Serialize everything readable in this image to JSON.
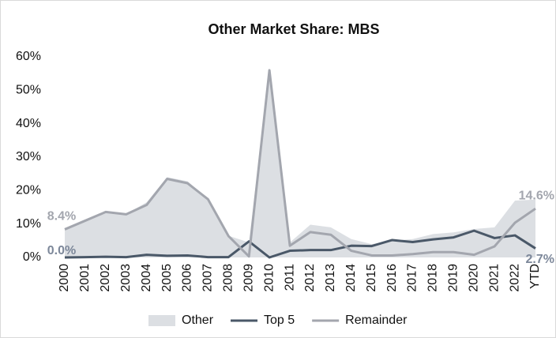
{
  "chart_data": {
    "type": "line",
    "title": "Other Market Share: MBS",
    "categories": [
      "2000",
      "2001",
      "2002",
      "2003",
      "2004",
      "2005",
      "2006",
      "2007",
      "2008",
      "2009",
      "2010",
      "2011",
      "2012",
      "2013",
      "2014",
      "2015",
      "2016",
      "2017",
      "2018",
      "2019",
      "2020",
      "2021",
      "2022",
      "YTD"
    ],
    "ylim": [
      0,
      60
    ],
    "yticks": [
      {
        "value": 0,
        "label": "0%"
      },
      {
        "value": 10,
        "label": "10%"
      },
      {
        "value": 20,
        "label": "20%"
      },
      {
        "value": 30,
        "label": "30%"
      },
      {
        "value": 40,
        "label": "40%"
      },
      {
        "value": 50,
        "label": "50%"
      },
      {
        "value": 60,
        "label": "60%"
      }
    ],
    "legend": "bottom",
    "series": [
      {
        "name": "Other",
        "kind": "area",
        "color": "#dcdfe3",
        "values": [
          8.4,
          11,
          13.8,
          13,
          16.5,
          24,
          22.8,
          17.5,
          6.5,
          4.5,
          56,
          4.5,
          9.8,
          9,
          5.5,
          4,
          5,
          5.5,
          7,
          7.5,
          8.5,
          9,
          17,
          17.3
        ]
      },
      {
        "name": "Top 5",
        "kind": "line",
        "color": "#4a5868",
        "values": [
          0.0,
          0.1,
          0.2,
          0.1,
          0.8,
          0.5,
          0.6,
          0.1,
          0.1,
          4.8,
          0.0,
          2.0,
          2.2,
          2.2,
          3.5,
          3.4,
          5.2,
          4.6,
          5.4,
          6.0,
          8.0,
          5.8,
          6.6,
          2.7
        ],
        "value_labels": [
          "0.0%",
          null,
          null,
          null,
          null,
          null,
          null,
          null,
          null,
          null,
          null,
          null,
          null,
          null,
          null,
          null,
          null,
          null,
          null,
          null,
          null,
          null,
          null,
          "2.7%"
        ]
      },
      {
        "name": "Remainder",
        "kind": "line",
        "color": "#a3a6ae",
        "values": [
          8.4,
          11,
          13.6,
          12.9,
          15.7,
          23.5,
          22.2,
          17.4,
          6.4,
          0.3,
          56,
          3.5,
          7.6,
          6.8,
          2.0,
          0.6,
          0.6,
          1.0,
          1.6,
          1.6,
          0.8,
          3.3,
          10.4,
          14.6
        ],
        "value_labels": [
          "8.4%",
          null,
          null,
          null,
          null,
          null,
          null,
          null,
          null,
          null,
          null,
          null,
          null,
          null,
          null,
          null,
          null,
          null,
          null,
          null,
          null,
          null,
          null,
          "14.6%"
        ]
      }
    ]
  }
}
